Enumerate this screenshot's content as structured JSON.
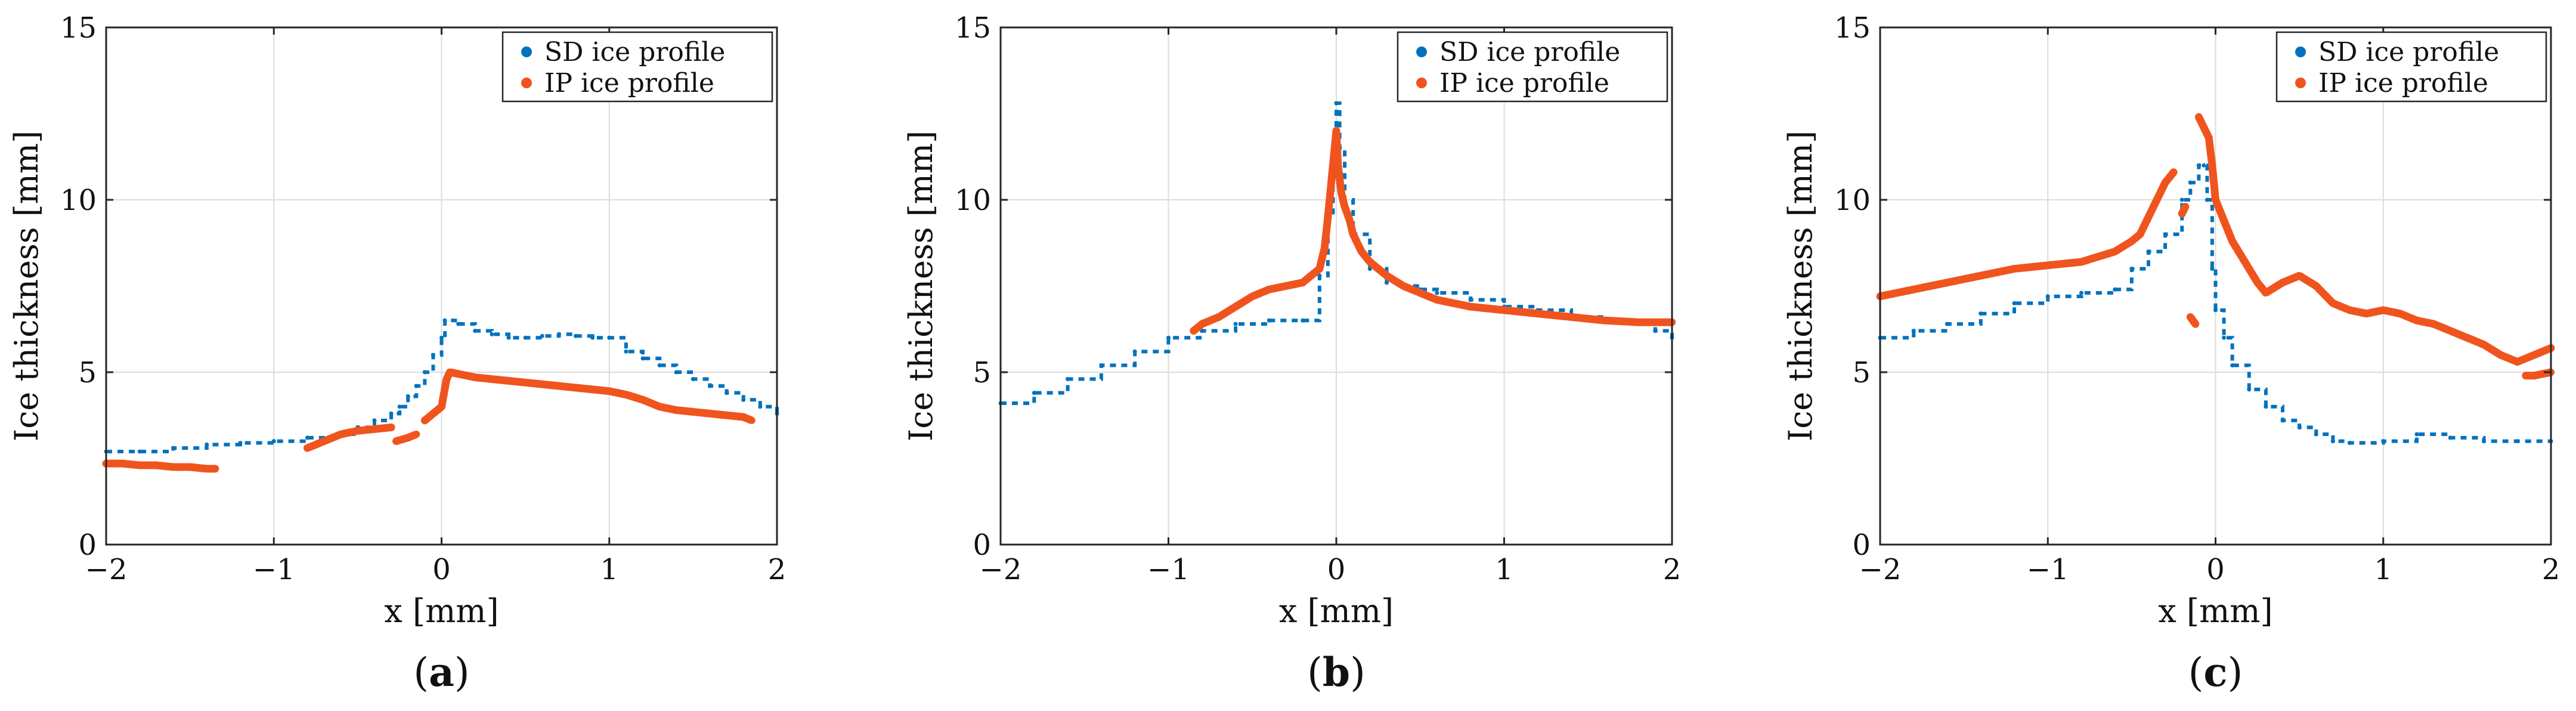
{
  "chart_data": [
    {
      "type": "scatter",
      "panel_label": "a",
      "title": "",
      "xlabel": "x [mm]",
      "ylabel": "Ice thickness [mm]",
      "xlim": [
        -2,
        2
      ],
      "ylim": [
        0,
        15
      ],
      "xticks": [
        -2,
        -1,
        0,
        1,
        2
      ],
      "yticks": [
        0,
        5,
        10,
        15
      ],
      "grid": true,
      "legend_position": "top-right",
      "series": [
        {
          "name": "SD ice profile",
          "color": "#0072BD",
          "style": "dotted-step",
          "x": [
            -2.0,
            -1.8,
            -1.6,
            -1.4,
            -1.2,
            -1.0,
            -0.8,
            -0.6,
            -0.5,
            -0.4,
            -0.3,
            -0.25,
            -0.2,
            -0.15,
            -0.1,
            -0.05,
            0.0,
            0.02,
            0.1,
            0.2,
            0.3,
            0.4,
            0.5,
            0.6,
            0.7,
            0.8,
            0.9,
            1.0,
            1.1,
            1.2,
            1.3,
            1.4,
            1.5,
            1.6,
            1.7,
            1.8,
            1.9,
            2.0
          ],
          "y": [
            2.7,
            2.7,
            2.8,
            2.9,
            2.95,
            3.0,
            3.1,
            3.2,
            3.4,
            3.6,
            3.8,
            4.0,
            4.3,
            4.6,
            5.0,
            5.5,
            6.0,
            6.5,
            6.4,
            6.2,
            6.1,
            6.0,
            6.0,
            6.05,
            6.1,
            6.05,
            6.0,
            6.0,
            5.6,
            5.4,
            5.2,
            5.0,
            4.8,
            4.6,
            4.4,
            4.2,
            4.0,
            3.8
          ]
        },
        {
          "name": "IP ice profile",
          "color": "#F0541E",
          "style": "thick-markers",
          "segments": [
            {
              "x": [
                -2.0,
                -1.9,
                -1.8,
                -1.7,
                -1.6,
                -1.5,
                -1.4,
                -1.35
              ],
              "y": [
                2.35,
                2.35,
                2.3,
                2.3,
                2.25,
                2.25,
                2.2,
                2.2
              ]
            },
            {
              "x": [
                -0.8,
                -0.7,
                -0.6,
                -0.5,
                -0.4,
                -0.3
              ],
              "y": [
                2.8,
                3.0,
                3.2,
                3.3,
                3.35,
                3.4
              ]
            },
            {
              "x": [
                -0.27,
                -0.2,
                -0.15
              ],
              "y": [
                3.0,
                3.1,
                3.2
              ]
            },
            {
              "x": [
                -0.1,
                -0.05,
                0.0,
                0.03,
                0.05,
                0.1,
                0.2,
                0.3,
                0.4,
                0.5,
                0.6,
                0.7,
                0.8,
                0.9,
                1.0,
                1.1,
                1.2,
                1.3,
                1.4,
                1.5,
                1.6,
                1.7,
                1.8,
                1.85
              ],
              "y": [
                3.6,
                3.8,
                4.0,
                4.8,
                5.0,
                4.95,
                4.85,
                4.8,
                4.75,
                4.7,
                4.65,
                4.6,
                4.55,
                4.5,
                4.45,
                4.35,
                4.2,
                4.0,
                3.9,
                3.85,
                3.8,
                3.75,
                3.7,
                3.6
              ]
            }
          ]
        }
      ]
    },
    {
      "type": "scatter",
      "panel_label": "b",
      "title": "",
      "xlabel": "x [mm]",
      "ylabel": "Ice thickness [mm]",
      "xlim": [
        -2,
        2
      ],
      "ylim": [
        0,
        15
      ],
      "xticks": [
        -2,
        -1,
        0,
        1,
        2
      ],
      "yticks": [
        0,
        5,
        10,
        15
      ],
      "grid": true,
      "legend_position": "top-right",
      "series": [
        {
          "name": "SD ice profile",
          "color": "#0072BD",
          "style": "dotted-step",
          "x": [
            -2.0,
            -1.8,
            -1.6,
            -1.4,
            -1.2,
            -1.0,
            -0.8,
            -0.6,
            -0.4,
            -0.2,
            -0.1,
            -0.05,
            -0.02,
            0.0,
            0.02,
            0.05,
            0.1,
            0.2,
            0.3,
            0.4,
            0.5,
            0.6,
            0.8,
            1.0,
            1.2,
            1.4,
            1.6,
            1.8,
            1.9,
            2.0
          ],
          "y": [
            4.1,
            4.4,
            4.8,
            5.2,
            5.6,
            6.0,
            6.2,
            6.4,
            6.5,
            6.5,
            7.8,
            9.5,
            11.0,
            12.8,
            11.5,
            10.0,
            9.0,
            8.0,
            7.6,
            7.5,
            7.4,
            7.3,
            7.1,
            6.9,
            6.8,
            6.6,
            6.5,
            6.4,
            6.2,
            6.0
          ]
        },
        {
          "name": "IP ice profile",
          "color": "#F0541E",
          "style": "thick-markers",
          "segments": [
            {
              "x": [
                -0.85,
                -0.8,
                -0.7,
                -0.6,
                -0.5,
                -0.4,
                -0.3,
                -0.2,
                -0.15,
                -0.1,
                -0.07,
                -0.05,
                -0.03,
                -0.01,
                0.0,
                0.01,
                0.03,
                0.05,
                0.08,
                0.1,
                0.15,
                0.2,
                0.3,
                0.4,
                0.5,
                0.6,
                0.8,
                1.0,
                1.2,
                1.4,
                1.6,
                1.8,
                2.0
              ],
              "y": [
                6.2,
                6.4,
                6.6,
                6.9,
                7.2,
                7.4,
                7.5,
                7.6,
                7.8,
                8.0,
                8.6,
                9.5,
                10.5,
                11.5,
                12.0,
                11.0,
                10.2,
                9.8,
                9.4,
                9.0,
                8.5,
                8.2,
                7.8,
                7.5,
                7.3,
                7.1,
                6.9,
                6.8,
                6.7,
                6.6,
                6.5,
                6.45,
                6.45
              ]
            }
          ]
        }
      ]
    },
    {
      "type": "scatter",
      "panel_label": "c",
      "title": "",
      "xlabel": "x [mm]",
      "ylabel": "Ice thickness [mm]",
      "xlim": [
        -2,
        2
      ],
      "ylim": [
        0,
        15
      ],
      "xticks": [
        -2,
        -1,
        0,
        1,
        2
      ],
      "yticks": [
        0,
        5,
        10,
        15
      ],
      "grid": true,
      "legend_position": "top-right",
      "series": [
        {
          "name": "SD ice profile",
          "color": "#0072BD",
          "style": "dotted-step",
          "x": [
            -2.0,
            -1.8,
            -1.6,
            -1.4,
            -1.2,
            -1.0,
            -0.8,
            -0.6,
            -0.5,
            -0.4,
            -0.3,
            -0.2,
            -0.15,
            -0.1,
            -0.07,
            -0.05,
            -0.02,
            0.0,
            0.05,
            0.1,
            0.2,
            0.3,
            0.4,
            0.5,
            0.6,
            0.7,
            0.8,
            1.0,
            1.2,
            1.4,
            1.6,
            1.8,
            2.0
          ],
          "y": [
            6.0,
            6.2,
            6.4,
            6.7,
            7.0,
            7.2,
            7.3,
            7.4,
            8.0,
            8.5,
            9.0,
            10.0,
            10.5,
            11.0,
            11.0,
            10.0,
            8.0,
            6.8,
            6.0,
            5.2,
            4.5,
            4.0,
            3.6,
            3.4,
            3.2,
            3.0,
            2.95,
            3.0,
            3.2,
            3.1,
            3.0,
            3.0,
            3.0
          ]
        },
        {
          "name": "IP ice profile",
          "color": "#F0541E",
          "style": "thick-markers",
          "segments": [
            {
              "x": [
                -2.0,
                -1.8,
                -1.6,
                -1.4,
                -1.2,
                -1.0,
                -0.8,
                -0.6,
                -0.5,
                -0.45,
                -0.4,
                -0.35,
                -0.3,
                -0.25
              ],
              "y": [
                7.2,
                7.4,
                7.6,
                7.8,
                8.0,
                8.1,
                8.2,
                8.5,
                8.8,
                9.0,
                9.5,
                10.0,
                10.5,
                10.8
              ]
            },
            {
              "x": [
                -0.2,
                -0.18
              ],
              "y": [
                9.6,
                9.8
              ]
            },
            {
              "x": [
                -0.15,
                -0.12
              ],
              "y": [
                6.6,
                6.4
              ]
            },
            {
              "x": [
                -0.1,
                -0.08,
                -0.06,
                -0.04,
                -0.02,
                0.0,
                0.05,
                0.1,
                0.15,
                0.2,
                0.25,
                0.3,
                0.4,
                0.5,
                0.6,
                0.7,
                0.8,
                0.9,
                1.0,
                1.1,
                1.2,
                1.3,
                1.4,
                1.5,
                1.6,
                1.7,
                1.8,
                1.9,
                2.0
              ],
              "y": [
                12.4,
                12.2,
                12.0,
                11.8,
                11.0,
                10.0,
                9.4,
                8.8,
                8.4,
                8.0,
                7.6,
                7.3,
                7.6,
                7.8,
                7.5,
                7.0,
                6.8,
                6.7,
                6.8,
                6.7,
                6.5,
                6.4,
                6.2,
                6.0,
                5.8,
                5.5,
                5.3,
                5.5,
                5.7
              ]
            },
            {
              "x": [
                1.85,
                1.9,
                1.95,
                2.0
              ],
              "y": [
                4.9,
                4.9,
                4.95,
                5.0
              ]
            }
          ]
        }
      ]
    }
  ]
}
